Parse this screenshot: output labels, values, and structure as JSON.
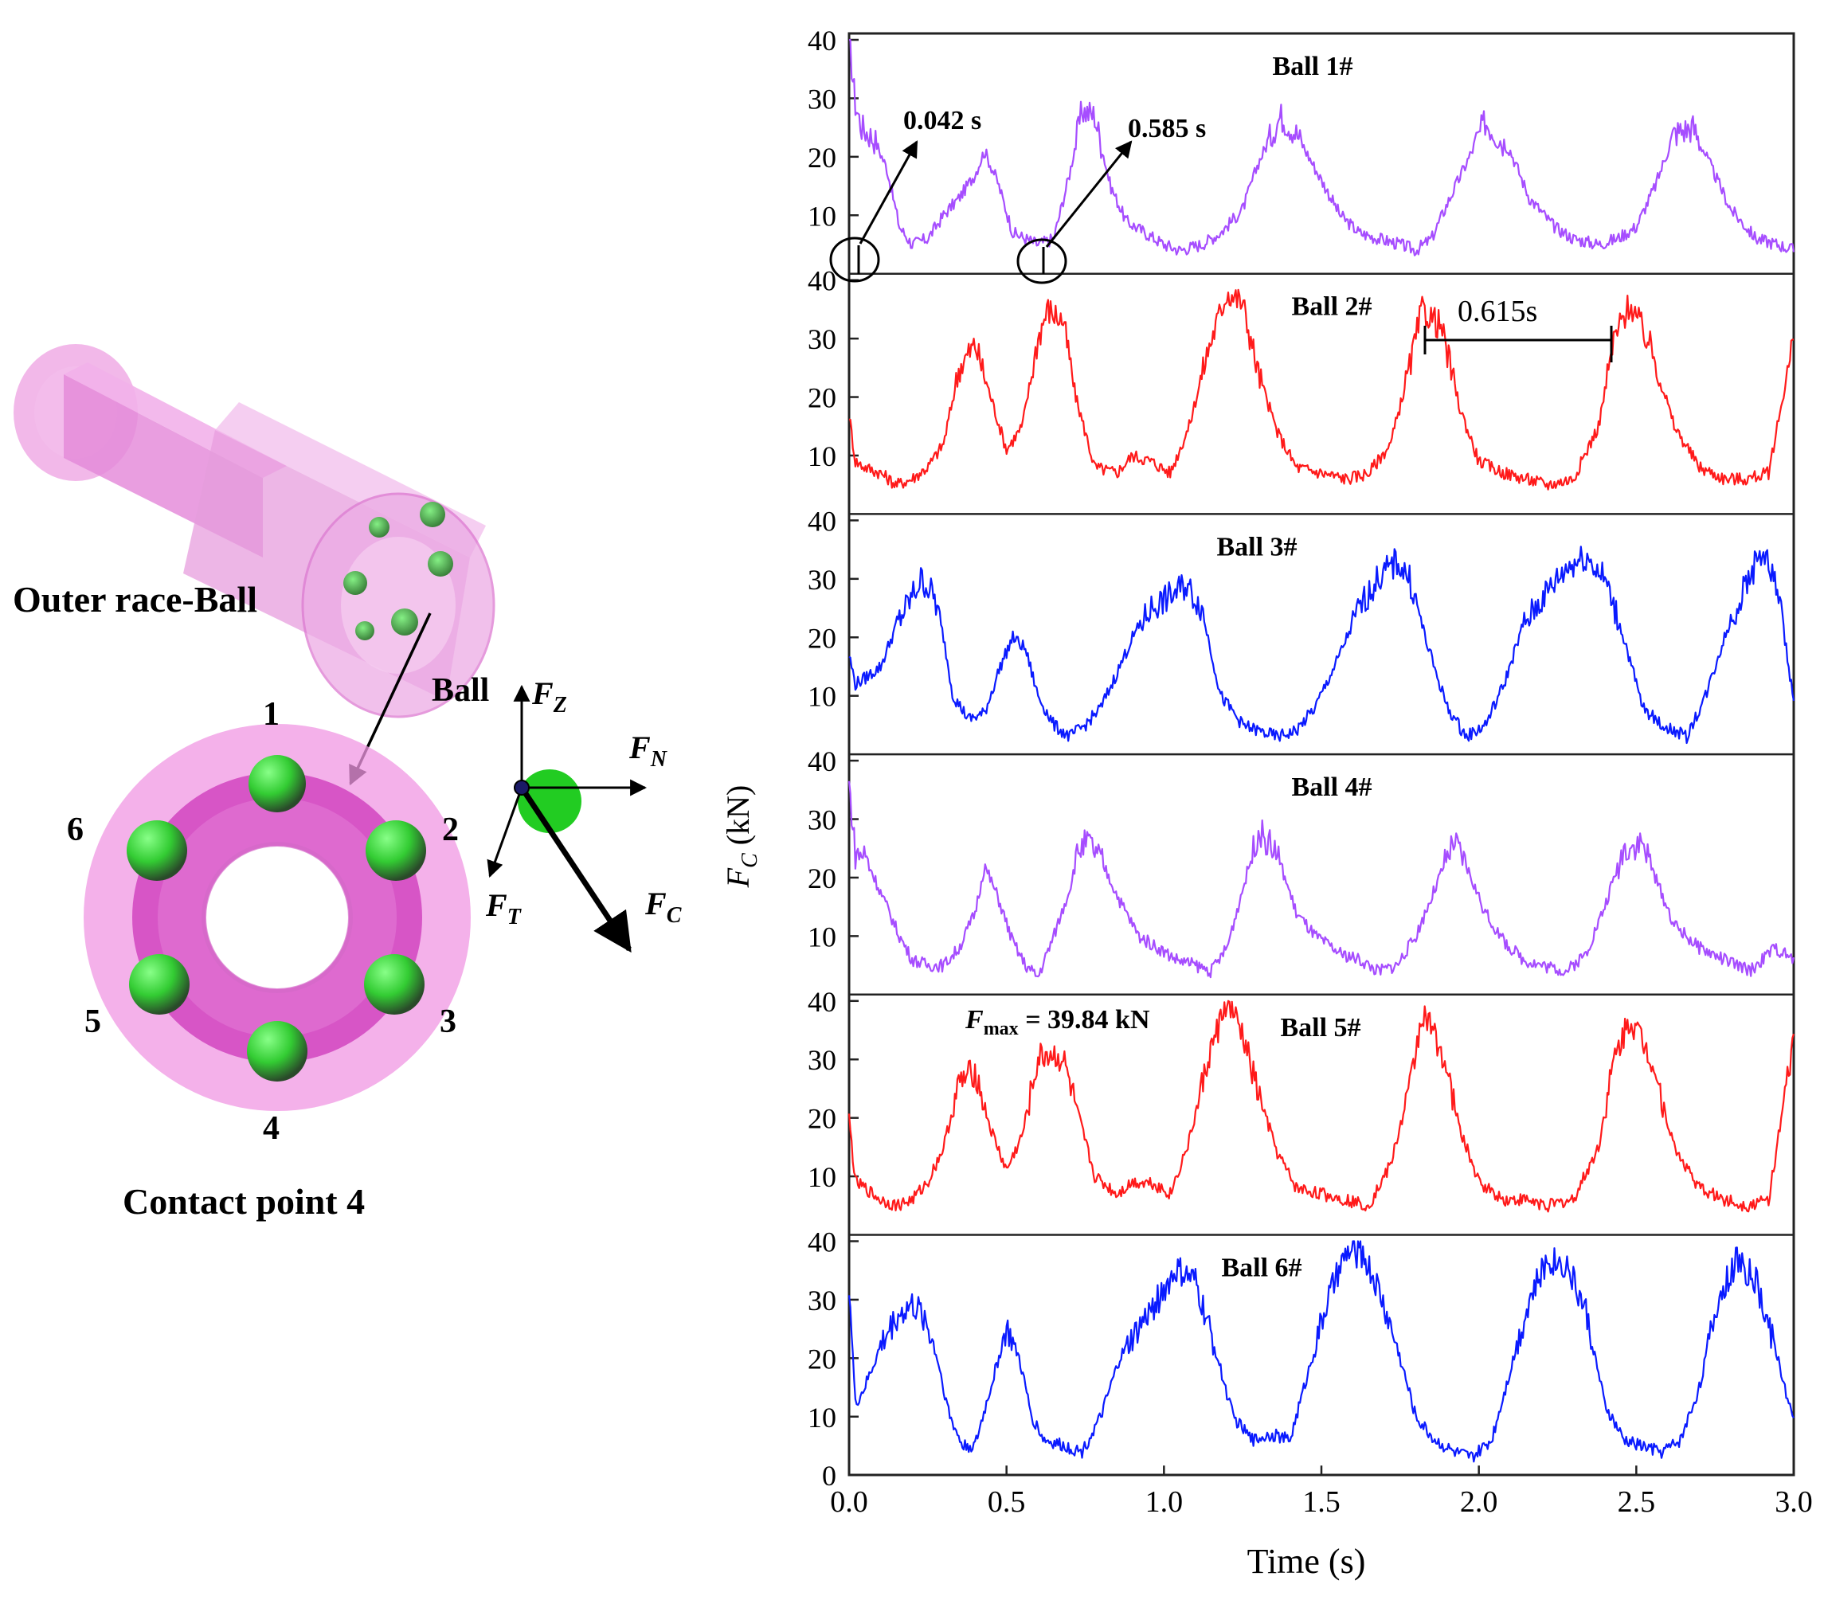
{
  "colors": {
    "ball_1": "#a64dff",
    "ball_2": "#ff1a1a",
    "ball_3": "#0a1aff",
    "ball_4": "#a64dff",
    "ball_5": "#ff1a1a",
    "ball_6": "#0a1aff",
    "bearing_pink": "#e25ecf",
    "ball_green": "#33dd33"
  },
  "left_figure": {
    "assembly_label": "Outer race-Ball",
    "contact_label": "Contact point 4",
    "ball_numbers": [
      "1",
      "2",
      "3",
      "4",
      "5",
      "6"
    ],
    "force_ball_label": "Ball",
    "force_labels": {
      "fz": "F",
      "fz_sub": "Z",
      "fn": "F",
      "fn_sub": "N",
      "ft": "F",
      "ft_sub": "T",
      "fc": "F",
      "fc_sub": "C"
    }
  },
  "chart_data": {
    "type": "line",
    "xlabel": "Time (s)",
    "ylabel_main": "F",
    "ylabel_sub": "C",
    "ylabel_unit": " (kN)",
    "xlim": [
      0,
      3
    ],
    "x_ticks": [
      "0.0",
      "0.5",
      "1.0",
      "1.5",
      "2.0",
      "2.5",
      "3.0"
    ],
    "x_tick_values": [
      0,
      0.5,
      1.0,
      1.5,
      2.0,
      2.5,
      3.0
    ],
    "ylim": [
      0,
      40
    ],
    "panel_y_ticks": [
      "10",
      "20",
      "30",
      "40"
    ],
    "panel_y_tick_values": [
      10,
      20,
      30,
      40
    ],
    "bottom_zero_tick": "0",
    "annotations": {
      "t1": "0.042 s",
      "t2": "0.585 s",
      "period": "0.615s",
      "fmax_main": "F",
      "fmax_sub": "max",
      "fmax_rest": " = 39.84 kN"
    },
    "series": [
      {
        "name": "Ball 1#",
        "x": [
          0,
          0.02,
          0.04,
          0.08,
          0.12,
          0.16,
          0.2,
          0.25,
          0.3,
          0.35,
          0.4,
          0.43,
          0.47,
          0.52,
          0.56,
          0.6,
          0.65,
          0.7,
          0.74,
          0.78,
          0.83,
          0.88,
          0.94,
          1.0,
          1.05,
          1.12,
          1.18,
          1.25,
          1.3,
          1.37,
          1.42,
          1.5,
          1.56,
          1.62,
          1.68,
          1.75,
          1.8,
          1.85,
          1.9,
          1.97,
          2.02,
          2.1,
          2.16,
          2.24,
          2.3,
          2.38,
          2.44,
          2.5,
          2.56,
          2.62,
          2.68,
          2.74,
          2.8,
          2.88,
          2.95,
          3.0
        ],
        "y": [
          40,
          29,
          25,
          23,
          18,
          8,
          5,
          6,
          10,
          13,
          17,
          21,
          16,
          7,
          6,
          5,
          6,
          17,
          28,
          27,
          15,
          9,
          7,
          5,
          4,
          5,
          7,
          11,
          19,
          27,
          24,
          16,
          10,
          7,
          6,
          5,
          4,
          6,
          12,
          20,
          26,
          21,
          13,
          8,
          6,
          5,
          6,
          8,
          15,
          24,
          25,
          18,
          11,
          6,
          5,
          4
        ]
      },
      {
        "name": "Ball 2#",
        "x": [
          0,
          0.02,
          0.05,
          0.1,
          0.15,
          0.2,
          0.25,
          0.3,
          0.35,
          0.4,
          0.45,
          0.5,
          0.55,
          0.6,
          0.63,
          0.68,
          0.72,
          0.78,
          0.85,
          0.9,
          0.96,
          1.02,
          1.08,
          1.14,
          1.2,
          1.25,
          1.3,
          1.36,
          1.42,
          1.5,
          1.58,
          1.65,
          1.72,
          1.78,
          1.82,
          1.88,
          1.94,
          2.0,
          2.08,
          2.15,
          2.22,
          2.3,
          2.38,
          2.43,
          2.48,
          2.55,
          2.62,
          2.7,
          2.78,
          2.85,
          2.92,
          3.0
        ],
        "y": [
          17,
          9,
          8,
          7,
          5,
          6,
          8,
          12,
          25,
          29,
          20,
          11,
          15,
          30,
          35,
          33,
          20,
          8,
          7,
          10,
          9,
          7,
          15,
          28,
          38,
          36,
          24,
          14,
          8,
          7,
          6,
          7,
          12,
          25,
          35,
          32,
          18,
          9,
          7,
          6,
          5,
          6,
          15,
          30,
          36,
          28,
          15,
          8,
          6,
          6,
          7,
          30
        ]
      },
      {
        "name": "Ball 3#",
        "x": [
          0,
          0.02,
          0.05,
          0.1,
          0.15,
          0.2,
          0.23,
          0.27,
          0.3,
          0.33,
          0.38,
          0.43,
          0.48,
          0.52,
          0.56,
          0.6,
          0.65,
          0.7,
          0.75,
          0.8,
          0.86,
          0.9,
          0.96,
          1.02,
          1.07,
          1.12,
          1.18,
          1.25,
          1.3,
          1.36,
          1.42,
          1.48,
          1.55,
          1.62,
          1.68,
          1.74,
          1.78,
          1.84,
          1.9,
          1.96,
          2.02,
          2.08,
          2.14,
          2.22,
          2.28,
          2.34,
          2.4,
          2.46,
          2.52,
          2.58,
          2.66,
          2.72,
          2.78,
          2.84,
          2.9,
          2.95,
          3.0
        ],
        "y": [
          17,
          12,
          13,
          15,
          22,
          27,
          30,
          27,
          20,
          10,
          6,
          7,
          15,
          20,
          18,
          10,
          5,
          3,
          5,
          8,
          15,
          20,
          25,
          27,
          29,
          25,
          10,
          5,
          4,
          3,
          4,
          8,
          16,
          25,
          30,
          33,
          30,
          18,
          8,
          3,
          5,
          12,
          22,
          28,
          32,
          34,
          30,
          20,
          8,
          5,
          3,
          10,
          20,
          28,
          35,
          28,
          9
        ]
      },
      {
        "name": "Ball 4#",
        "x": [
          0,
          0.02,
          0.05,
          0.08,
          0.12,
          0.16,
          0.2,
          0.25,
          0.3,
          0.35,
          0.4,
          0.43,
          0.47,
          0.52,
          0.56,
          0.6,
          0.65,
          0.7,
          0.73,
          0.76,
          0.8,
          0.86,
          0.92,
          0.98,
          1.04,
          1.1,
          1.15,
          1.2,
          1.25,
          1.3,
          1.36,
          1.42,
          1.48,
          1.56,
          1.62,
          1.68,
          1.74,
          1.8,
          1.86,
          1.92,
          1.96,
          2.02,
          2.08,
          2.14,
          2.2,
          2.28,
          2.34,
          2.4,
          2.46,
          2.52,
          2.56,
          2.62,
          2.7,
          2.78,
          2.86,
          2.94,
          3.0
        ],
        "y": [
          36,
          24,
          24,
          20,
          15,
          10,
          6,
          5,
          5,
          8,
          14,
          22,
          17,
          9,
          5,
          3,
          10,
          18,
          25,
          26,
          23,
          16,
          10,
          8,
          6,
          5,
          4,
          8,
          18,
          28,
          24,
          14,
          10,
          7,
          6,
          4,
          5,
          10,
          18,
          26,
          22,
          14,
          9,
          6,
          5,
          4,
          7,
          15,
          25,
          26,
          20,
          12,
          8,
          6,
          4,
          8,
          6
        ]
      },
      {
        "name": "Ball 5#",
        "x": [
          0,
          0.02,
          0.05,
          0.1,
          0.15,
          0.2,
          0.25,
          0.3,
          0.35,
          0.4,
          0.45,
          0.5,
          0.55,
          0.6,
          0.63,
          0.68,
          0.72,
          0.78,
          0.85,
          0.9,
          0.96,
          1.02,
          1.08,
          1.14,
          1.2,
          1.25,
          1.3,
          1.36,
          1.42,
          1.5,
          1.58,
          1.65,
          1.72,
          1.78,
          1.82,
          1.88,
          1.94,
          2.0,
          2.08,
          2.15,
          2.22,
          2.3,
          2.38,
          2.43,
          2.48,
          2.55,
          2.62,
          2.7,
          2.78,
          2.85,
          2.92,
          3.0
        ],
        "y": [
          20,
          9,
          8,
          6,
          5,
          6,
          9,
          15,
          26,
          28,
          18,
          11,
          17,
          30,
          31,
          30,
          22,
          10,
          7,
          9,
          9,
          7,
          16,
          30,
          40,
          34,
          24,
          14,
          8,
          7,
          6,
          5,
          12,
          25,
          38,
          32,
          18,
          9,
          6,
          6,
          5,
          6,
          15,
          30,
          37,
          30,
          15,
          8,
          6,
          5,
          6,
          33
        ]
      },
      {
        "name": "Ball 6#",
        "x": [
          0,
          0.02,
          0.05,
          0.1,
          0.15,
          0.2,
          0.24,
          0.28,
          0.32,
          0.36,
          0.4,
          0.45,
          0.5,
          0.54,
          0.58,
          0.62,
          0.68,
          0.74,
          0.8,
          0.86,
          0.92,
          0.98,
          1.04,
          1.1,
          1.16,
          1.22,
          1.28,
          1.34,
          1.4,
          1.46,
          1.52,
          1.58,
          1.63,
          1.68,
          1.74,
          1.8,
          1.86,
          1.92,
          1.98,
          2.04,
          2.1,
          2.16,
          2.22,
          2.28,
          2.34,
          2.4,
          2.46,
          2.52,
          2.58,
          2.64,
          2.7,
          2.76,
          2.82,
          2.88,
          2.94,
          3.0
        ],
        "y": [
          33,
          12,
          15,
          22,
          27,
          29,
          27,
          20,
          10,
          5,
          5,
          15,
          25,
          20,
          10,
          6,
          5,
          4,
          10,
          20,
          25,
          30,
          35,
          33,
          22,
          10,
          6,
          7,
          6,
          18,
          30,
          38,
          38,
          32,
          22,
          10,
          6,
          4,
          3,
          6,
          18,
          30,
          37,
          36,
          28,
          12,
          6,
          5,
          4,
          6,
          15,
          30,
          37,
          33,
          22,
          9
        ]
      }
    ]
  }
}
